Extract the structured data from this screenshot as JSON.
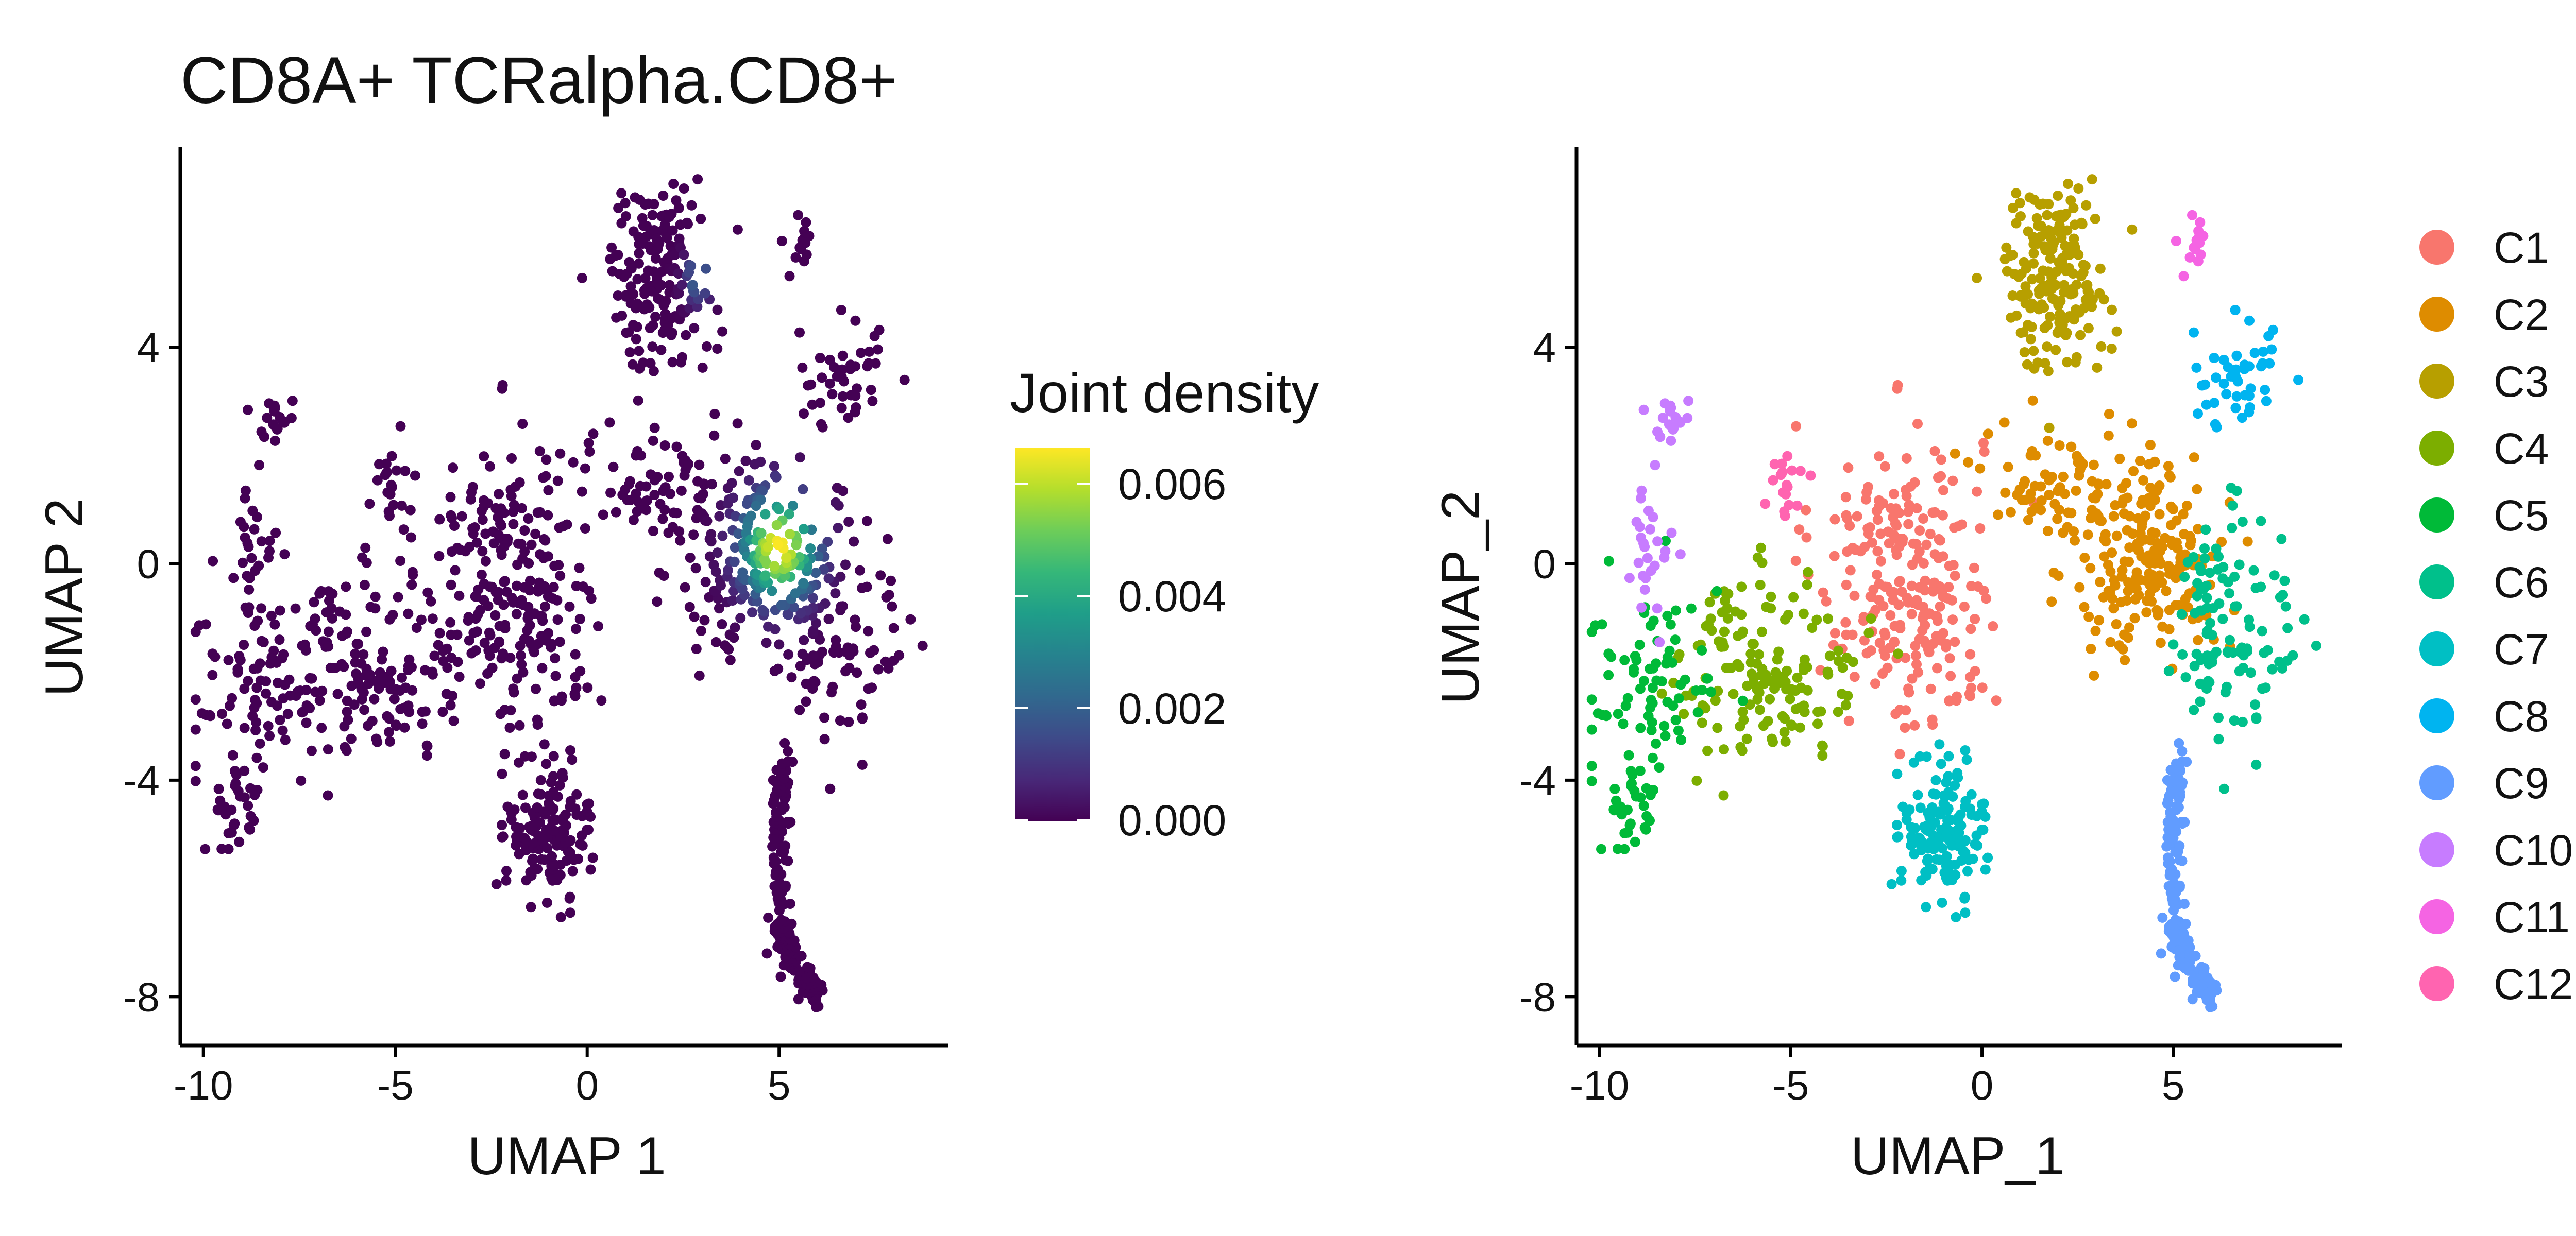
{
  "colors": {
    "viridis": [
      "#440154",
      "#482878",
      "#3E4A89",
      "#31688E",
      "#26828E",
      "#1F9E89",
      "#35B779",
      "#6DCD59",
      "#B4DE2C",
      "#FDE725"
    ],
    "clusters": {
      "C1": "#F8766D",
      "C2": "#DE8C00",
      "C3": "#B79F00",
      "C4": "#7CAE00",
      "C5": "#00BA38",
      "C6": "#00C08B",
      "C7": "#00BFC4",
      "C8": "#00B4F0",
      "C9": "#619CFF",
      "C10": "#C77CFF",
      "C11": "#F564E3",
      "C12": "#FF64B0"
    }
  },
  "chart_data": [
    {
      "type": "scatter",
      "title": "CD8A+ TCRalpha.CD8+",
      "xlabel": "UMAP 1",
      "ylabel": "UMAP 2",
      "xlim": [
        -10.6,
        9.4
      ],
      "ylim": [
        -8.9,
        7.7
      ],
      "x_ticks": [
        "-10",
        "-5",
        "0",
        "5"
      ],
      "y_ticks": [
        "-8",
        "-4",
        "0",
        "4"
      ],
      "grid": false,
      "color_by": "joint density",
      "legend": {
        "title": "Joint density",
        "type": "colorbar",
        "range": [
          0,
          0.0065
        ],
        "labels": [
          "0.006",
          "0.004",
          "0.002",
          "0.000"
        ]
      },
      "density_peak": {
        "x": 5.0,
        "y": 0.3,
        "value": 0.0065
      }
    },
    {
      "type": "scatter",
      "title": "",
      "xlabel": "UMAP_1",
      "ylabel": "UMAP_2",
      "xlim": [
        -10.6,
        9.4
      ],
      "ylim": [
        -8.9,
        7.7
      ],
      "x_ticks": [
        "-10",
        "-5",
        "0",
        "5"
      ],
      "y_ticks": [
        "-8",
        "-4",
        "0",
        "4"
      ],
      "grid": false,
      "color_by": "cluster",
      "legend": {
        "type": "categorical",
        "placement": "right",
        "labels": [
          "C1",
          "C2",
          "C3",
          "C4",
          "C5",
          "C6",
          "C7",
          "C8",
          "C9",
          "C10",
          "C11",
          "C12"
        ]
      },
      "clusters": [
        {
          "name": "C1",
          "n": 240,
          "parts": [
            {
              "x": -2.2,
              "y": 0.2,
              "sx": 1.1,
              "sy": 1.2,
              "w": 0.7
            },
            {
              "x": -1.4,
              "y": -1.6,
              "sx": 1.0,
              "sy": 0.9,
              "w": 0.3
            }
          ]
        },
        {
          "name": "C2",
          "n": 280,
          "parts": [
            {
              "x": 4.4,
              "y": 0.1,
              "sx": 1.0,
              "sy": 0.95,
              "w": 0.75
            },
            {
              "x": 2.0,
              "y": 1.5,
              "sx": 1.0,
              "sy": 0.5,
              "w": 0.25
            }
          ]
        },
        {
          "name": "C3",
          "n": 180,
          "parts": [
            {
              "x": 1.9,
              "y": 5.3,
              "sx": 0.7,
              "sy": 0.85,
              "w": 1.0
            }
          ]
        },
        {
          "name": "C4",
          "n": 150,
          "parts": [
            {
              "x": -5.6,
              "y": -1.9,
              "sx": 1.2,
              "sy": 0.85,
              "w": 1.0
            }
          ]
        },
        {
          "name": "C5",
          "n": 110,
          "parts": [
            {
              "x": -8.6,
              "y": -2.4,
              "sx": 0.9,
              "sy": 1.0,
              "w": 0.75
            },
            {
              "x": -9.3,
              "y": -4.7,
              "sx": 0.35,
              "sy": 0.5,
              "w": 0.25
            }
          ]
        },
        {
          "name": "C6",
          "n": 110,
          "parts": [
            {
              "x": 6.1,
              "y": -1.2,
              "sx": 0.6,
              "sy": 1.1,
              "w": 0.8
            },
            {
              "x": 7.8,
              "y": -1.1,
              "sx": 0.45,
              "sy": 0.8,
              "w": 0.2
            }
          ]
        },
        {
          "name": "C7",
          "n": 150,
          "parts": [
            {
              "x": -1.0,
              "y": -4.9,
              "sx": 0.55,
              "sy": 0.6,
              "w": 1.0
            }
          ]
        },
        {
          "name": "C8",
          "n": 45,
          "parts": [
            {
              "x": 6.7,
              "y": 3.4,
              "sx": 0.6,
              "sy": 0.55,
              "w": 1.0
            }
          ]
        },
        {
          "name": "C9",
          "n": 200,
          "parts": [
            {
              "path": [
                [
                  5.2,
                  -3.3
                ],
                [
                  5.0,
                  -4.6
                ],
                [
                  5.0,
                  -6.0
                ],
                [
                  5.1,
                  -7.0
                ],
                [
                  5.6,
                  -7.6
                ],
                [
                  6.0,
                  -8.0
                ]
              ],
              "w": 1.0
            }
          ]
        },
        {
          "name": "C10",
          "n": 45,
          "parts": [
            {
              "x": -8.8,
              "y": -0.1,
              "sx": 0.3,
              "sy": 0.7,
              "w": 0.6
            },
            {
              "x": -8.2,
              "y": 2.7,
              "sx": 0.3,
              "sy": 0.25,
              "w": 0.4
            }
          ]
        },
        {
          "name": "C11",
          "n": 14,
          "parts": [
            {
              "x": 5.6,
              "y": 5.7,
              "sx": 0.2,
              "sy": 0.4,
              "w": 1.0
            }
          ]
        },
        {
          "name": "C12",
          "n": 18,
          "parts": [
            {
              "x": -5.1,
              "y": 1.5,
              "sx": 0.25,
              "sy": 0.3,
              "w": 1.0
            }
          ]
        }
      ]
    }
  ]
}
